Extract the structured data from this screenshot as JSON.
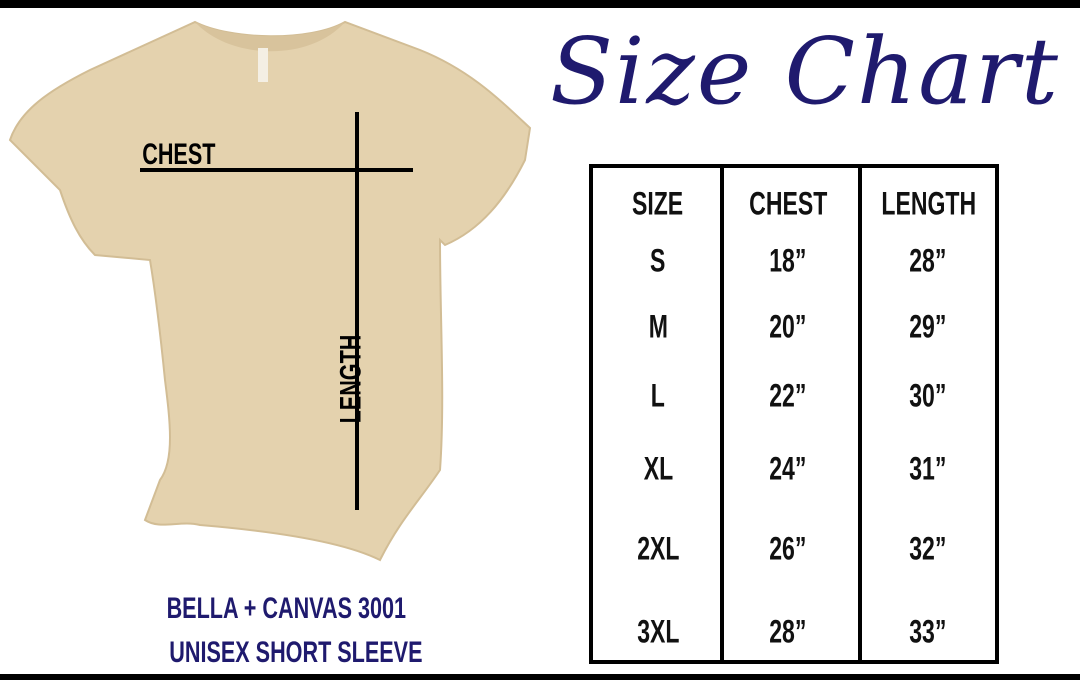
{
  "title": "Size Chart",
  "shirt_labels": {
    "chest": "CHEST",
    "length": "LENGTH"
  },
  "product": {
    "line1": "BELLA + CANVAS 3001",
    "line2": "UNISEX SHORT SLEEVE"
  },
  "table": {
    "headers": [
      "SIZE",
      "CHEST",
      "LENGTH"
    ],
    "rows": [
      [
        "S",
        "18”",
        "28”"
      ],
      [
        "M",
        "20”",
        "29”"
      ],
      [
        "L",
        "22”",
        "30”"
      ],
      [
        "XL",
        "24”",
        "31”"
      ],
      [
        "2XL",
        "26”",
        "32”"
      ],
      [
        "3XL",
        "28”",
        "33”"
      ]
    ]
  },
  "colors": {
    "title": "#1f1a6e",
    "shirt": "#e4d2ae",
    "lines": "#000000"
  }
}
